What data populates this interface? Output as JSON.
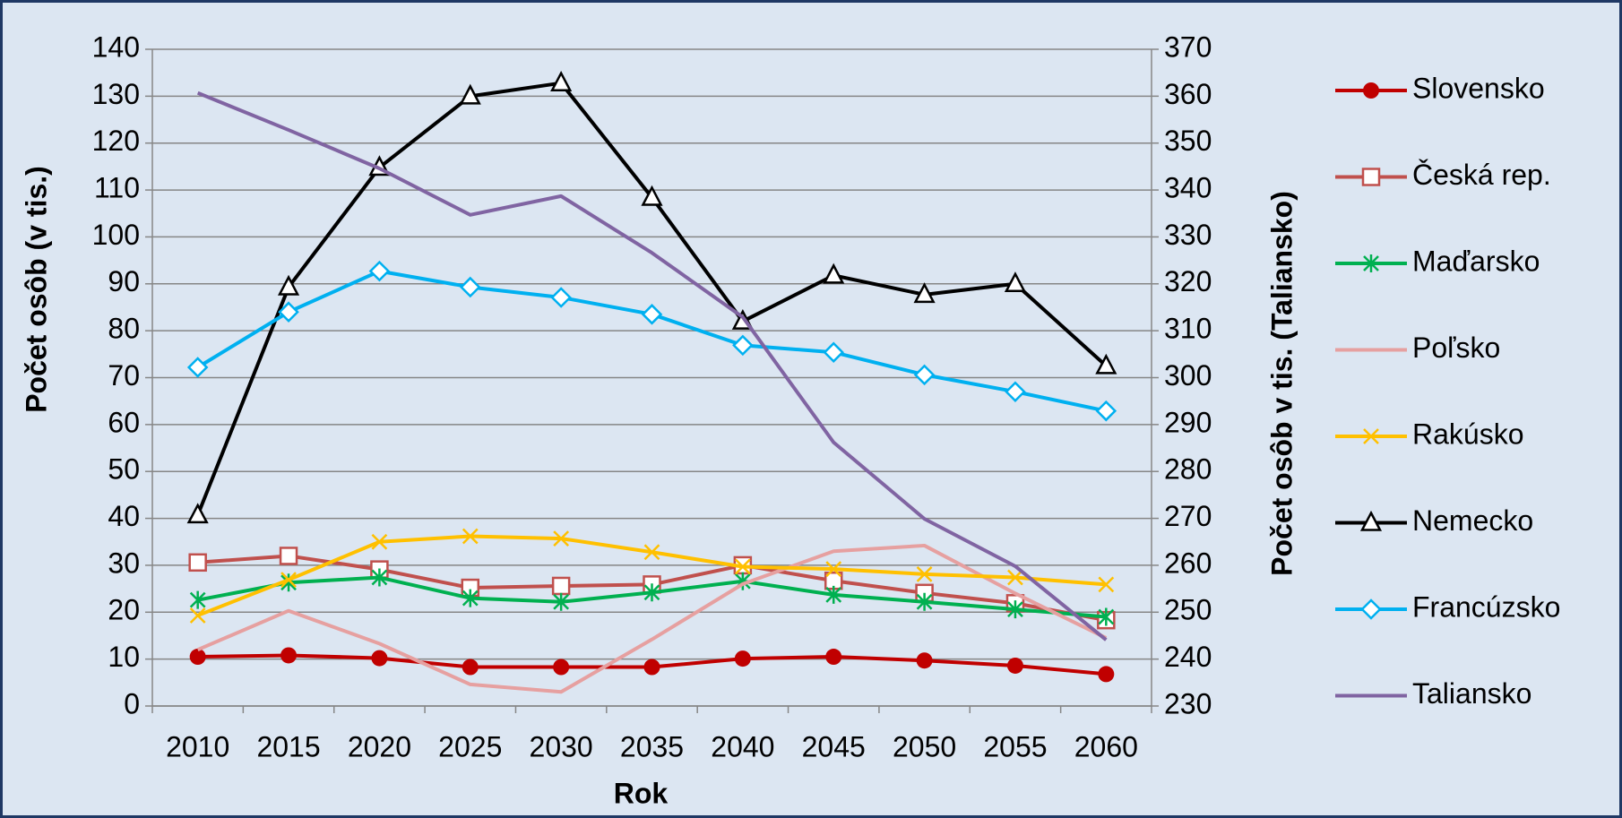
{
  "chart_data": {
    "type": "line",
    "x_label": "Rok",
    "y_label": "Počet osôb (v tis.)",
    "y2_label": "Počet osôb v tis. (Taliansko)",
    "categories": [
      "2010",
      "2015",
      "2020",
      "2025",
      "2030",
      "2035",
      "2040",
      "2045",
      "2050",
      "2055",
      "2060"
    ],
    "ylim": [
      0,
      140
    ],
    "yticks": [
      0,
      10,
      20,
      30,
      40,
      50,
      60,
      70,
      80,
      90,
      100,
      110,
      120,
      130,
      140
    ],
    "y2lim": [
      230,
      370
    ],
    "y2ticks": [
      230,
      240,
      250,
      260,
      270,
      280,
      290,
      300,
      310,
      320,
      330,
      340,
      350,
      360,
      370
    ],
    "grid": true,
    "legend": "right",
    "series": [
      {
        "name": "Slovensko",
        "color": "#c00000",
        "marker": "circle",
        "values": [
          10.5,
          10.8,
          10.2,
          8.3,
          8.3,
          8.3,
          10.1,
          10.5,
          9.7,
          8.6,
          6.8
        ]
      },
      {
        "name": "Česká rep.",
        "color": "#c0504d",
        "marker": "square",
        "values": [
          30.6,
          32.0,
          29.1,
          25.2,
          25.6,
          25.9,
          30.0,
          26.7,
          24.1,
          21.9,
          18.3
        ]
      },
      {
        "name": "Maďarsko",
        "color": "#00b050",
        "marker": "star",
        "values": [
          22.6,
          26.3,
          27.4,
          23.0,
          22.2,
          24.2,
          26.6,
          23.7,
          22.2,
          20.6,
          19.0
        ]
      },
      {
        "name": "Poľsko",
        "color": "#e6a0a0",
        "marker": "none",
        "values": [
          12.0,
          20.3,
          13.3,
          4.6,
          3.0,
          14.2,
          26.0,
          33.0,
          34.2,
          24.0,
          14.5
        ]
      },
      {
        "name": "Rakúsko",
        "color": "#ffc000",
        "marker": "x",
        "values": [
          19.3,
          26.9,
          35.0,
          36.2,
          35.7,
          32.8,
          29.7,
          29.2,
          28.1,
          27.4,
          25.9
        ]
      },
      {
        "name": "Nemecko",
        "color": "#000000",
        "marker": "triangle",
        "values": [
          40.7,
          89.3,
          114.8,
          130.0,
          132.8,
          108.4,
          82.0,
          91.8,
          87.7,
          90.0,
          72.5
        ]
      },
      {
        "name": "Francúzsko",
        "color": "#00b0f0",
        "marker": "diamond",
        "values": [
          72.2,
          84.0,
          92.7,
          89.3,
          87.1,
          83.5,
          76.9,
          75.4,
          70.6,
          67.0,
          62.9
        ]
      },
      {
        "name": "Taliansko",
        "color": "#8064a2",
        "marker": "none",
        "axis": "y2",
        "values": [
          360.7,
          352.8,
          344.6,
          334.7,
          338.7,
          326.6,
          312.9,
          286.2,
          269.9,
          259.8,
          244.1
        ]
      }
    ]
  }
}
